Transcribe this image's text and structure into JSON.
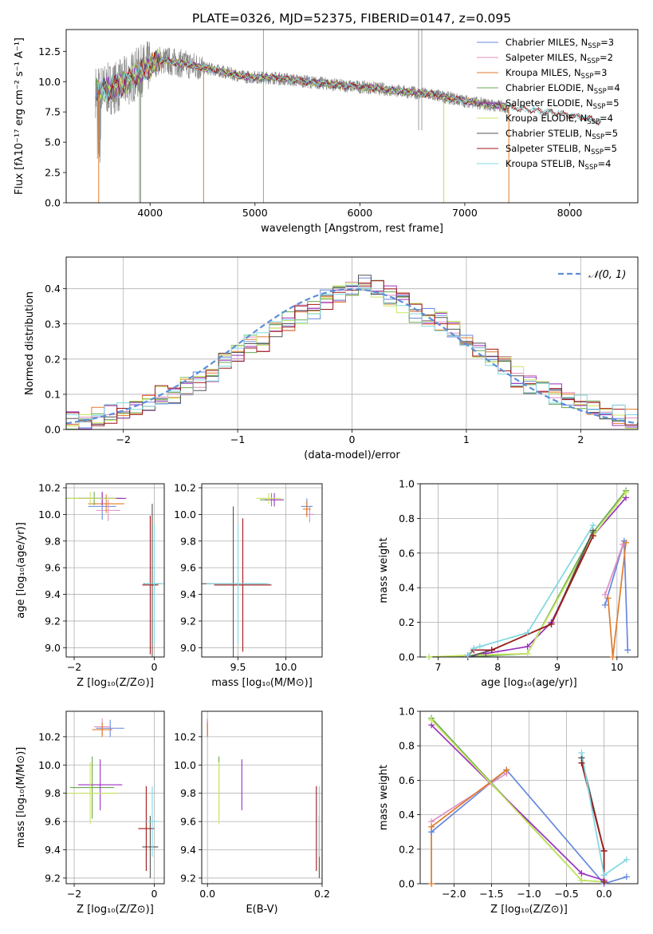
{
  "figure_title": "PLATE=0326, MJD=52375, FIBERID=0147, z=0.095",
  "colors": {
    "Chabrier MILES": "#6688dd",
    "Salpeter MILES": "#e08fc0",
    "Kroupa MILES": "#e07b2a",
    "Chabrier ELODIE": "#6aa84f",
    "Salpeter ELODIE": "#9b30c0",
    "Kroupa ELODIE": "#c8e860",
    "Chabrier STELIB": "#555555",
    "Salpeter STELIB": "#a01818",
    "Kroupa STELIB": "#80d8e0",
    "data": "#888888"
  },
  "chart_data": [
    {
      "id": "spectrum",
      "type": "line",
      "xlabel": "wavelength [Angstrom, rest frame]",
      "ylabel": "Flux [fλ10⁻¹⁷ erg cm⁻² s⁻¹ A⁻¹]",
      "xlim": [
        3200,
        8650
      ],
      "ylim": [
        0,
        14.3
      ],
      "xticks": [
        4000,
        5000,
        6000,
        7000,
        8000
      ],
      "yticks": [
        0.0,
        2.5,
        5.0,
        7.5,
        10.0,
        12.5
      ],
      "legend_position": "top-right",
      "legend": [
        {
          "label": "Chabrier MILES, N",
          "sub": "SSP",
          "suffix": "=3"
        },
        {
          "label": "Salpeter MILES, N",
          "sub": "SSP",
          "suffix": "=2"
        },
        {
          "label": "Kroupa MILES, N",
          "sub": "SSP",
          "suffix": "=3"
        },
        {
          "label": "Chabrier ELODIE, N",
          "sub": "SSP",
          "suffix": "=4"
        },
        {
          "label": "Salpeter ELODIE, N",
          "sub": "SSP",
          "suffix": "=5"
        },
        {
          "label": "Kroupa ELODIE, N",
          "sub": "SSP",
          "suffix": "=4"
        },
        {
          "label": "Chabrier STELIB, N",
          "sub": "SSP",
          "suffix": "=5"
        },
        {
          "label": "Salpeter STELIB, N",
          "sub": "SSP",
          "suffix": "=5"
        },
        {
          "label": "Kroupa STELIB, N",
          "sub": "SSP",
          "suffix": "=4"
        }
      ],
      "continuum": {
        "x": [
          3500,
          3700,
          3900,
          4100,
          4300,
          4600,
          4900,
          5200,
          5500,
          5800,
          6100,
          6400,
          6700,
          7000,
          7300,
          7600,
          7900,
          8200,
          8300
        ],
        "y": [
          9.2,
          9.6,
          10.8,
          11.8,
          11.5,
          11.0,
          10.4,
          10.3,
          10.0,
          9.7,
          9.5,
          9.2,
          8.9,
          8.4,
          8.0,
          7.7,
          7.4,
          6.9,
          6.6
        ]
      }
    },
    {
      "id": "residuals",
      "type": "histogram",
      "xlabel": "(data-model)/error",
      "ylabel": "Normed distribution",
      "xlim": [
        -2.5,
        2.5
      ],
      "ylim": [
        0,
        0.49
      ],
      "xticks": [
        -2,
        -1,
        0,
        1,
        2
      ],
      "yticks": [
        0.0,
        0.1,
        0.2,
        0.3,
        0.4
      ],
      "legend_position": "top-right",
      "legend_label": "𝒩(0, 1)",
      "bins": [
        -2.5,
        2.5,
        45
      ],
      "base": [
        0.03,
        0.03,
        0.04,
        0.045,
        0.05,
        0.06,
        0.08,
        0.1,
        0.1,
        0.12,
        0.14,
        0.16,
        0.19,
        0.22,
        0.24,
        0.25,
        0.28,
        0.31,
        0.33,
        0.34,
        0.37,
        0.38,
        0.4,
        0.41,
        0.4,
        0.38,
        0.36,
        0.33,
        0.32,
        0.31,
        0.28,
        0.26,
        0.23,
        0.2,
        0.18,
        0.15,
        0.13,
        0.11,
        0.1,
        0.08,
        0.07,
        0.06,
        0.05,
        0.04,
        0.03
      ]
    },
    {
      "id": "age_vs_Z",
      "type": "scatter",
      "xlabel": "Z [log₁₀(Z/Z⊙)]",
      "ylabel": "age  [log₁₀(age/yr)]",
      "xlim": [
        -2.2,
        0.25
      ],
      "ylim": [
        8.93,
        10.23
      ],
      "xticks": [
        -2,
        0
      ],
      "yticks": [
        9.0,
        9.2,
        9.4,
        9.6,
        9.8,
        10.0,
        10.2
      ],
      "points": [
        {
          "m": "Chabrier MILES",
          "x": -1.3,
          "y": 10.06,
          "ex": 0.35,
          "ey": 0.1
        },
        {
          "m": "Salpeter MILES",
          "x": -1.15,
          "y": 10.03,
          "ex": 0.3,
          "ey": 0.08
        },
        {
          "m": "Kroupa MILES",
          "x": -1.2,
          "y": 10.08,
          "ex": 0.45,
          "ey": 0.07
        },
        {
          "m": "Chabrier ELODIE",
          "x": -1.5,
          "y": 10.12,
          "ex": 0.7,
          "ey": 0.05
        },
        {
          "m": "Salpeter ELODIE",
          "x": -1.3,
          "y": 10.12,
          "ex": 0.6,
          "ey": 0.05
        },
        {
          "m": "Kroupa ELODIE",
          "x": -1.6,
          "y": 10.12,
          "ex": 0.65,
          "ey": 0.05
        },
        {
          "m": "Chabrier STELIB",
          "x": -0.05,
          "y": 9.48,
          "ex": 0.22,
          "ey": 0.6
        },
        {
          "m": "Salpeter STELIB",
          "x": -0.1,
          "y": 9.47,
          "ex": 0.2,
          "ey": 0.52
        },
        {
          "m": "Kroupa STELIB",
          "x": 0.0,
          "y": 9.48,
          "ex": 0.25,
          "ey": 0.45
        }
      ]
    },
    {
      "id": "age_vs_mass",
      "type": "scatter",
      "xlabel": "mass [log₁₀(M/M⊙)]",
      "ylabel": "",
      "xlim": [
        9.12,
        10.38
      ],
      "ylim": [
        8.93,
        10.23
      ],
      "xticks": [
        9.5,
        10.0
      ],
      "yticks": [
        9.0,
        9.2,
        9.4,
        9.6,
        9.8,
        10.0,
        10.2
      ],
      "points": [
        {
          "m": "Chabrier MILES",
          "x": 10.22,
          "y": 10.06,
          "ex": 0.06,
          "ey": 0.06
        },
        {
          "m": "Salpeter MILES",
          "x": 10.25,
          "y": 10.0,
          "ex": 0.05,
          "ey": 0.06
        },
        {
          "m": "Kroupa MILES",
          "x": 10.22,
          "y": 10.04,
          "ex": 0.04,
          "ey": 0.06
        },
        {
          "m": "Chabrier ELODIE",
          "x": 9.85,
          "y": 10.11,
          "ex": 0.12,
          "ey": 0.05
        },
        {
          "m": "Salpeter ELODIE",
          "x": 9.88,
          "y": 10.11,
          "ex": 0.1,
          "ey": 0.05
        },
        {
          "m": "Kroupa ELODIE",
          "x": 9.82,
          "y": 10.12,
          "ex": 0.13,
          "ey": 0.04
        },
        {
          "m": "Chabrier STELIB",
          "x": 9.45,
          "y": 9.48,
          "ex": 0.35,
          "ey": 0.58
        },
        {
          "m": "Salpeter STELIB",
          "x": 9.55,
          "y": 9.47,
          "ex": 0.3,
          "ey": 0.5
        },
        {
          "m": "Kroupa STELIB",
          "x": 9.5,
          "y": 9.48,
          "ex": 0.33,
          "ey": 0.45
        }
      ]
    },
    {
      "id": "massweight_vs_age",
      "type": "line",
      "xlabel": "age  [log₁₀(age/yr)]",
      "ylabel": "mass weight",
      "xlim": [
        6.7,
        10.35
      ],
      "ylim": [
        0,
        1.0
      ],
      "xticks": [
        7,
        8,
        9,
        10
      ],
      "yticks": [
        0.0,
        0.2,
        0.4,
        0.6,
        0.8,
        1.0
      ],
      "series": [
        {
          "m": "Chabrier MILES",
          "x": [
            9.8,
            10.12,
            10.18
          ],
          "y": [
            0.3,
            0.67,
            0.04
          ]
        },
        {
          "m": "Salpeter MILES",
          "x": [
            9.8,
            10.1
          ],
          "y": [
            0.36,
            0.65
          ]
        },
        {
          "m": "Kroupa MILES",
          "x": [
            9.85,
            9.93,
            10.15
          ],
          "y": [
            0.34,
            0.0,
            0.66
          ]
        },
        {
          "m": "Chabrier ELODIE",
          "x": [
            6.85,
            7.5,
            8.5,
            9.6,
            10.15
          ],
          "y": [
            0.0,
            0.0,
            0.02,
            0.72,
            0.96
          ]
        },
        {
          "m": "Salpeter ELODIE",
          "x": [
            7.5,
            7.8,
            8.5,
            8.9,
            9.6,
            10.15
          ],
          "y": [
            0.0,
            0.02,
            0.06,
            0.2,
            0.7,
            0.92
          ]
        },
        {
          "m": "Kroupa ELODIE",
          "x": [
            6.85,
            7.5,
            8.5,
            9.6,
            10.15
          ],
          "y": [
            0.0,
            0.01,
            0.02,
            0.7,
            0.95
          ]
        },
        {
          "m": "Chabrier STELIB",
          "x": [
            7.5,
            7.9,
            8.9,
            9.6
          ],
          "y": [
            0.0,
            0.04,
            0.19,
            0.73
          ]
        },
        {
          "m": "Salpeter STELIB",
          "x": [
            7.5,
            7.6,
            7.9,
            8.9,
            9.6
          ],
          "y": [
            0.01,
            0.04,
            0.04,
            0.19,
            0.7
          ]
        },
        {
          "m": "Kroupa STELIB",
          "x": [
            7.5,
            7.6,
            7.7,
            8.5,
            9.6
          ],
          "y": [
            0.01,
            0.05,
            0.06,
            0.14,
            0.76
          ]
        }
      ]
    },
    {
      "id": "mass_vs_Z",
      "type": "scatter",
      "xlabel": "Z [log₁₀(Z/Z⊙)]",
      "ylabel": "mass [log₁₀(M/M⊙)]",
      "xlim": [
        -2.2,
        0.25
      ],
      "ylim": [
        9.16,
        10.38
      ],
      "xticks": [
        -2,
        0
      ],
      "yticks": [
        9.2,
        9.4,
        9.6,
        9.8,
        10.0,
        10.2
      ],
      "points": [
        {
          "m": "Chabrier MILES",
          "x": -1.1,
          "y": 10.26,
          "ex": 0.35,
          "ey": 0.06
        },
        {
          "m": "Salpeter MILES",
          "x": -1.3,
          "y": 10.27,
          "ex": 0.2,
          "ey": 0.06
        },
        {
          "m": "Kroupa MILES",
          "x": -1.3,
          "y": 10.25,
          "ex": 0.25,
          "ey": 0.05
        },
        {
          "m": "Chabrier ELODIE",
          "x": -1.55,
          "y": 9.84,
          "ex": 0.55,
          "ey": 0.22
        },
        {
          "m": "Salpeter ELODIE",
          "x": -1.35,
          "y": 9.86,
          "ex": 0.55,
          "ey": 0.18
        },
        {
          "m": "Kroupa ELODIE",
          "x": -1.6,
          "y": 9.8,
          "ex": 0.7,
          "ey": 0.22
        },
        {
          "m": "Chabrier STELIB",
          "x": -0.1,
          "y": 9.42,
          "ex": 0.2,
          "ey": 0.22
        },
        {
          "m": "Salpeter STELIB",
          "x": -0.2,
          "y": 9.55,
          "ex": 0.2,
          "ey": 0.3
        },
        {
          "m": "Kroupa STELIB",
          "x": -0.05,
          "y": 9.6,
          "ex": 0.15,
          "ey": 0.25
        }
      ]
    },
    {
      "id": "mass_vs_ebv",
      "type": "scatter",
      "xlabel": "E(B-V)",
      "ylabel": "",
      "xlim": [
        -0.01,
        0.2
      ],
      "ylim": [
        9.16,
        10.38
      ],
      "xticks": [
        0.0,
        0.2
      ],
      "yticks": [
        9.2,
        9.4,
        9.6,
        9.8,
        10.0,
        10.2
      ],
      "points": [
        {
          "m": "Chabrier MILES",
          "x": 0.0,
          "y": 10.26,
          "ex": 0,
          "ey": 0.06
        },
        {
          "m": "Salpeter MILES",
          "x": 0.0,
          "y": 10.27,
          "ex": 0,
          "ey": 0.06
        },
        {
          "m": "Kroupa MILES",
          "x": 0.0,
          "y": 10.25,
          "ex": 0,
          "ey": 0.05
        },
        {
          "m": "Chabrier ELODIE",
          "x": 0.02,
          "y": 9.84,
          "ex": 0,
          "ey": 0.22
        },
        {
          "m": "Salpeter ELODIE",
          "x": 0.06,
          "y": 9.86,
          "ex": 0,
          "ey": 0.18
        },
        {
          "m": "Kroupa ELODIE",
          "x": 0.02,
          "y": 9.8,
          "ex": 0,
          "ey": 0.22
        },
        {
          "m": "Chabrier STELIB",
          "x": 0.195,
          "y": 9.42,
          "ex": 0,
          "ey": 0.22
        },
        {
          "m": "Salpeter STELIB",
          "x": 0.19,
          "y": 9.55,
          "ex": 0,
          "ey": 0.3
        },
        {
          "m": "Kroupa STELIB",
          "x": 0.195,
          "y": 9.6,
          "ex": 0,
          "ey": 0.25
        }
      ]
    },
    {
      "id": "massweight_vs_Z",
      "type": "line",
      "xlabel": "Z [log₁₀(Z/Z⊙)]",
      "ylabel": "mass weight",
      "xlim": [
        -2.45,
        0.45
      ],
      "ylim": [
        0,
        1.0
      ],
      "xticks": [
        -2.0,
        -1.5,
        -1.0,
        -0.5,
        0.0
      ],
      "yticks": [
        0.0,
        0.2,
        0.4,
        0.6,
        0.8,
        1.0
      ],
      "series": [
        {
          "m": "Chabrier MILES",
          "x": [
            -2.3,
            -1.3,
            0.0,
            0.3
          ],
          "y": [
            0.3,
            0.66,
            0.0,
            0.04
          ]
        },
        {
          "m": "Salpeter MILES",
          "x": [
            -2.3,
            -1.3
          ],
          "y": [
            0.36,
            0.64
          ]
        },
        {
          "m": "Kroupa MILES",
          "x": [
            -2.3,
            -2.3,
            -1.3
          ],
          "y": [
            0.0,
            0.33,
            0.66
          ]
        },
        {
          "m": "Chabrier ELODIE",
          "x": [
            -2.3,
            -0.3,
            0.0
          ],
          "y": [
            0.96,
            0.02,
            0.01
          ]
        },
        {
          "m": "Salpeter ELODIE",
          "x": [
            -2.3,
            -0.3,
            0.0
          ],
          "y": [
            0.92,
            0.06,
            0.02
          ]
        },
        {
          "m": "Kroupa ELODIE",
          "x": [
            -2.3,
            -0.3,
            0.0
          ],
          "y": [
            0.95,
            0.02,
            0.01
          ]
        },
        {
          "m": "Chabrier STELIB",
          "x": [
            -0.3,
            0.0,
            0.0
          ],
          "y": [
            0.73,
            0.19,
            0.01
          ]
        },
        {
          "m": "Salpeter STELIB",
          "x": [
            -0.3,
            0.0,
            0.0
          ],
          "y": [
            0.7,
            0.19,
            0.01
          ]
        },
        {
          "m": "Kroupa STELIB",
          "x": [
            -0.3,
            0.0,
            0.3
          ],
          "y": [
            0.76,
            0.05,
            0.14
          ]
        }
      ]
    }
  ]
}
